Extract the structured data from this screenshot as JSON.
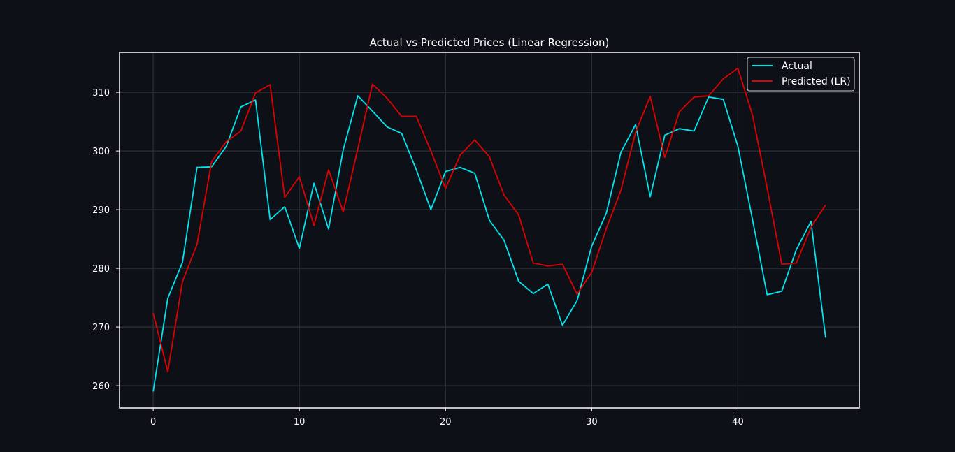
{
  "chart_data": {
    "type": "line",
    "title": "Actual vs Predicted Prices (Linear Regression)",
    "xlabel": "",
    "ylabel": "",
    "xlim": [
      -2.3,
      48.3
    ],
    "ylim": [
      256.2,
      316.8
    ],
    "xticks": [
      0,
      10,
      20,
      30,
      40
    ],
    "yticks": [
      260,
      270,
      280,
      290,
      300,
      310
    ],
    "grid": true,
    "legend_position": "top-right",
    "background_color": "#0d1117",
    "series": [
      {
        "name": "Actual",
        "color": "#00e5ee",
        "x": [
          0,
          1,
          2,
          3,
          4,
          5,
          6,
          7,
          8,
          9,
          10,
          11,
          12,
          13,
          14,
          15,
          16,
          17,
          18,
          19,
          20,
          21,
          22,
          23,
          24,
          25,
          26,
          27,
          28,
          29,
          30,
          31,
          32,
          33,
          34,
          35,
          36,
          37,
          38,
          39,
          40,
          41,
          42,
          43,
          44,
          45,
          46
        ],
        "values": [
          259.0,
          274.9,
          281.0,
          297.2,
          297.3,
          300.8,
          307.5,
          308.7,
          288.3,
          290.5,
          283.4,
          294.5,
          286.7,
          300.2,
          309.4,
          306.8,
          304.1,
          303.0,
          296.8,
          290.0,
          296.5,
          297.2,
          296.2,
          288.2,
          284.8,
          277.8,
          275.7,
          277.3,
          270.3,
          274.5,
          283.8,
          289.4,
          299.8,
          304.5,
          292.2,
          302.7,
          303.8,
          303.4,
          309.2,
          308.8,
          300.8,
          288.3,
          275.5,
          276.1,
          283.2,
          288.0,
          268.2
        ]
      },
      {
        "name": "Predicted (LR)",
        "color": "#e00000",
        "x": [
          0,
          1,
          2,
          3,
          4,
          5,
          6,
          7,
          8,
          9,
          10,
          11,
          12,
          13,
          14,
          15,
          16,
          17,
          18,
          19,
          20,
          21,
          22,
          23,
          24,
          25,
          26,
          27,
          28,
          29,
          30,
          31,
          32,
          33,
          34,
          35,
          36,
          37,
          38,
          39,
          40,
          41,
          42,
          43,
          44,
          45,
          46
        ],
        "values": [
          272.4,
          262.4,
          277.7,
          284.1,
          298.2,
          301.6,
          303.4,
          309.9,
          311.3,
          292.1,
          295.6,
          287.3,
          296.8,
          289.6,
          300.4,
          311.4,
          309.0,
          305.9,
          305.9,
          300.0,
          293.6,
          299.3,
          301.9,
          299.0,
          292.5,
          289.1,
          280.9,
          280.4,
          280.7,
          275.6,
          279.3,
          286.8,
          293.3,
          303.2,
          309.3,
          298.9,
          306.7,
          309.2,
          309.4,
          312.3,
          314.1,
          306.1,
          293.7,
          280.7,
          280.9,
          287.0,
          290.8
        ]
      }
    ]
  }
}
